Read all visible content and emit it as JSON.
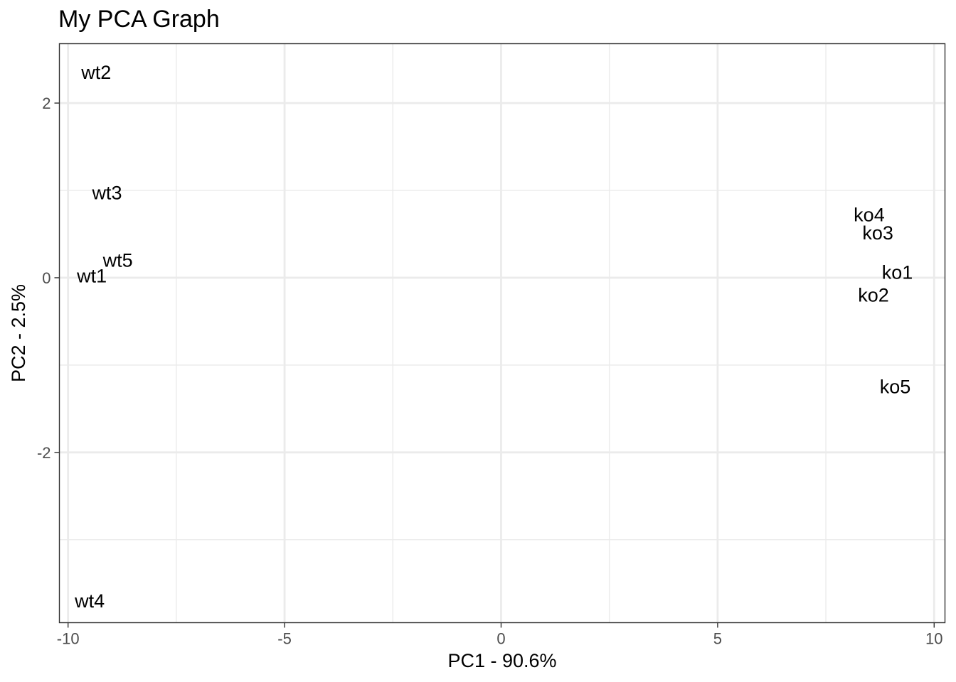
{
  "chart_data": {
    "type": "scatter",
    "title": "My PCA Graph",
    "xlabel": "PC1 - 90.6%",
    "ylabel": "PC2 - 2.5%",
    "xlim": [
      -10.2,
      10.25
    ],
    "ylim": [
      -3.95,
      2.68
    ],
    "x_ticks": [
      -10,
      -5,
      0,
      5,
      10
    ],
    "x_tick_labels": [
      "-10",
      "-5",
      "0",
      "5",
      "10"
    ],
    "y_ticks": [
      -2,
      0,
      2
    ],
    "y_tick_labels": [
      "-2",
      "0",
      "2"
    ],
    "x_minor_ticks": [
      -7.5,
      -2.5,
      2.5,
      7.5
    ],
    "y_minor_ticks": [
      -3,
      -1,
      1
    ],
    "grid": true,
    "legend": "none",
    "points": [
      {
        "label": "wt2",
        "x": -9.35,
        "y": 2.35
      },
      {
        "label": "wt3",
        "x": -9.1,
        "y": 0.97
      },
      {
        "label": "wt5",
        "x": -8.85,
        "y": 0.2
      },
      {
        "label": "wt1",
        "x": -9.45,
        "y": 0.02
      },
      {
        "label": "wt4",
        "x": -9.5,
        "y": -3.7
      },
      {
        "label": "ko4",
        "x": 8.5,
        "y": 0.72
      },
      {
        "label": "ko3",
        "x": 8.7,
        "y": 0.51
      },
      {
        "label": "ko1",
        "x": 9.15,
        "y": 0.06
      },
      {
        "label": "ko2",
        "x": 8.6,
        "y": -0.2
      },
      {
        "label": "ko5",
        "x": 9.1,
        "y": -1.25
      }
    ]
  }
}
